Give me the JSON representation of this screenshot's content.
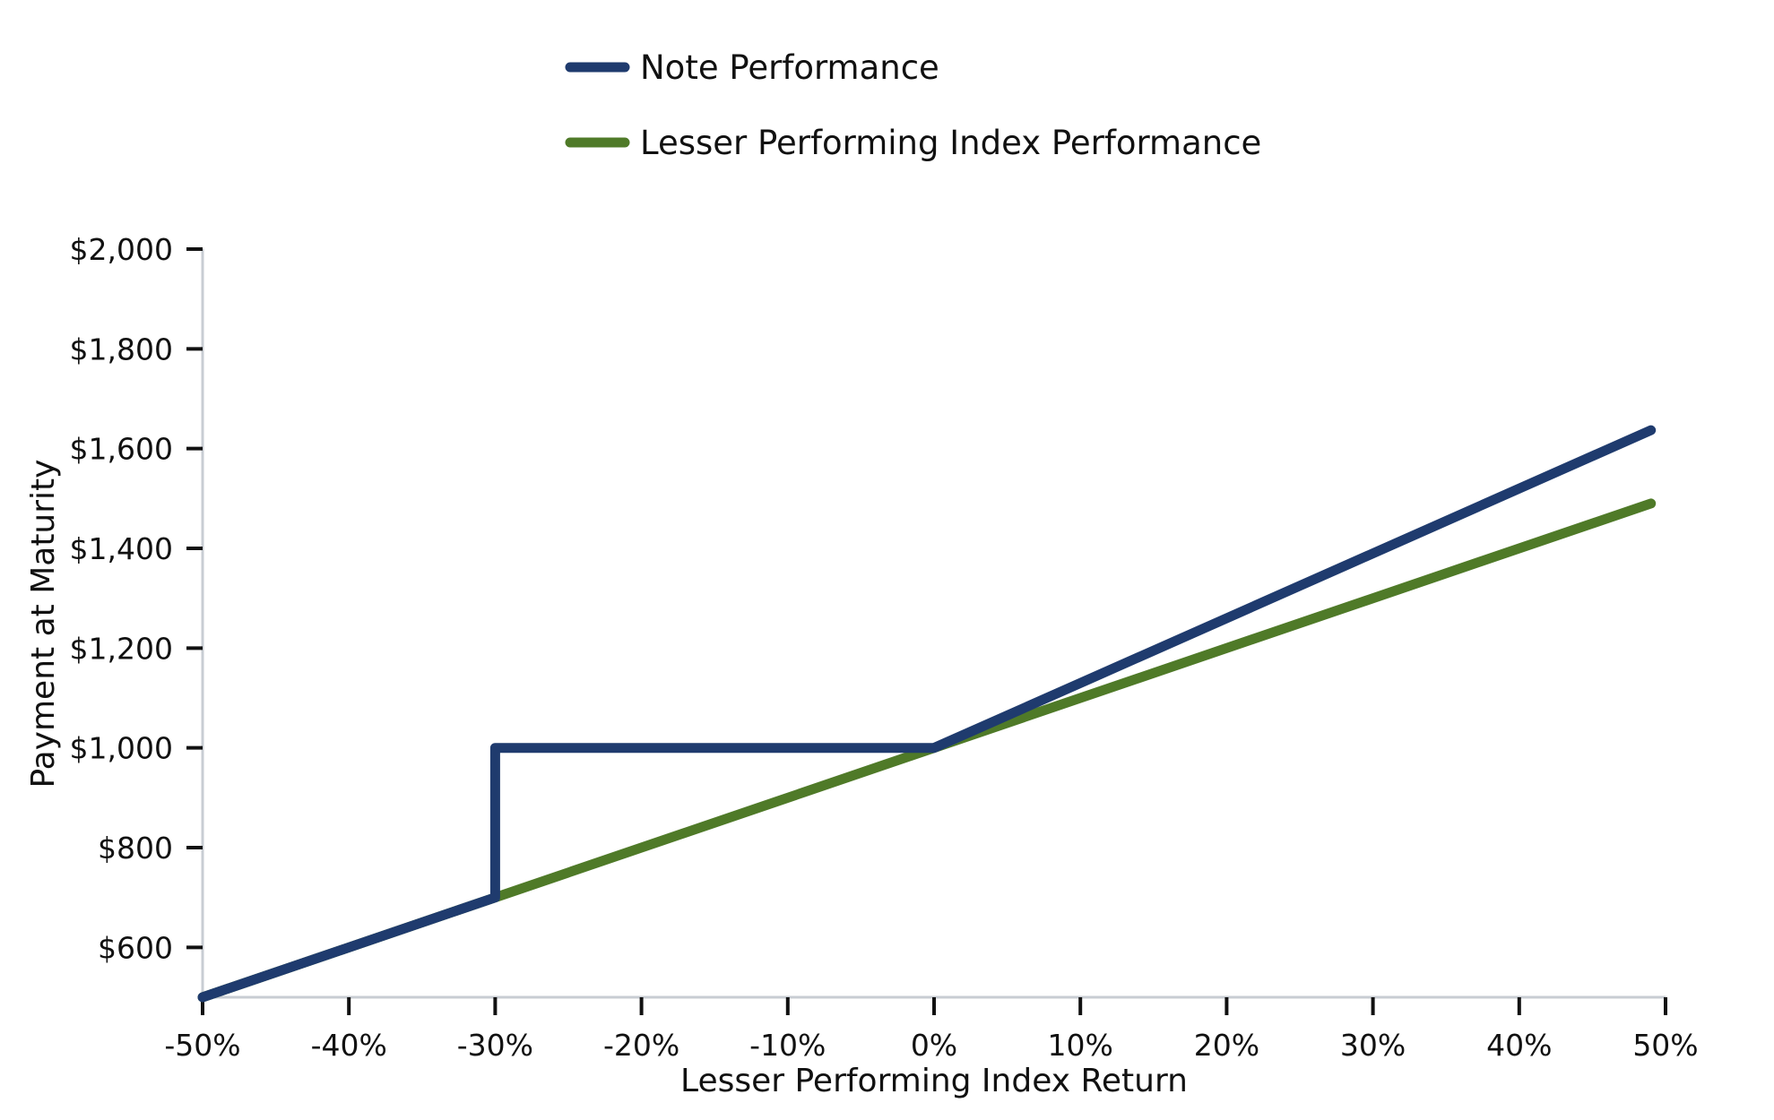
{
  "chart_data": {
    "type": "line",
    "title": "",
    "xlabel": "Lesser Performing Index Return",
    "ylabel": "Payment at Maturity",
    "xlim": [
      -50,
      50
    ],
    "ylim": [
      500,
      2000
    ],
    "x_ticks": [
      -50,
      -40,
      -30,
      -20,
      -10,
      0,
      10,
      20,
      30,
      40,
      50
    ],
    "x_tick_labels": [
      "-50%",
      "-40%",
      "-30%",
      "-20%",
      "-10%",
      "0%",
      "10%",
      "20%",
      "30%",
      "40%",
      "50%"
    ],
    "y_ticks": [
      600,
      800,
      1000,
      1200,
      1400,
      1600,
      1800,
      2000
    ],
    "y_tick_labels": [
      "$600",
      "$800",
      "$1,000",
      "$1,200",
      "$1,400",
      "$1,600",
      "$1,800",
      "$2,000"
    ],
    "grid": false,
    "legend_position": "top-center",
    "series": [
      {
        "name": "Note Performance",
        "color": "#1f3b6e",
        "points": [
          [
            -50,
            500
          ],
          [
            -30,
            700
          ],
          [
            -30,
            1000
          ],
          [
            -1,
            1000
          ],
          [
            0,
            1000
          ],
          [
            49,
            1637
          ]
        ]
      },
      {
        "name": "Lesser Performing Index Performance",
        "color": "#4f7a28",
        "points": [
          [
            -50,
            500
          ],
          [
            49,
            1490
          ]
        ]
      }
    ]
  }
}
